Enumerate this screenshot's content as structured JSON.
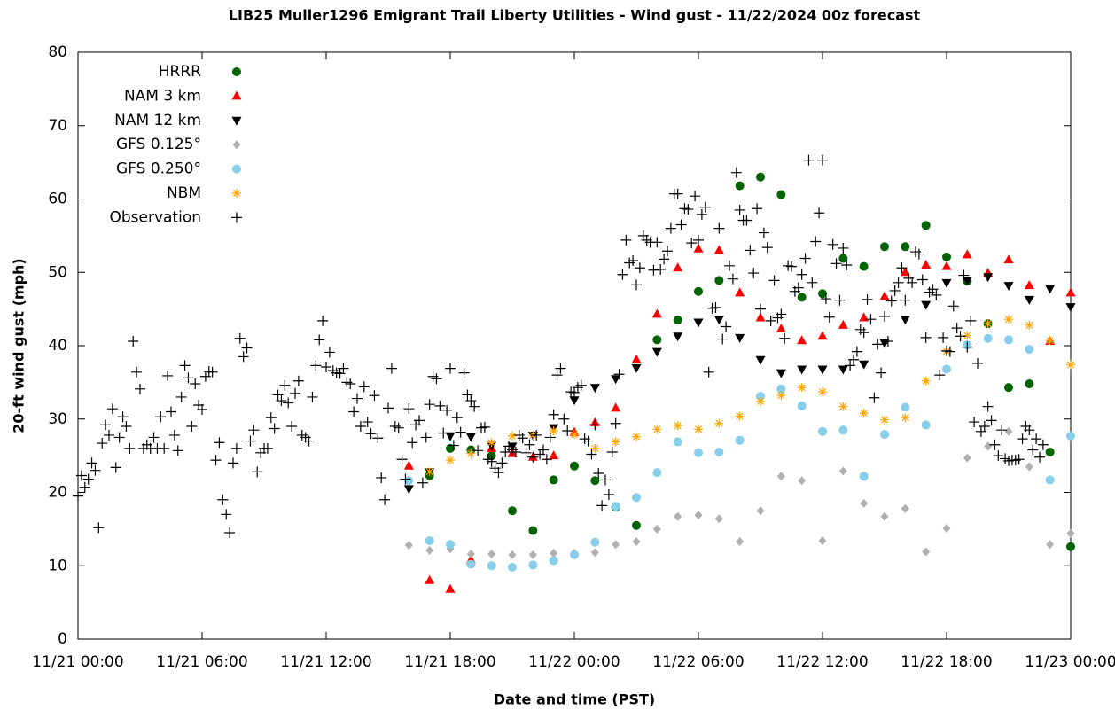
{
  "chart_data": {
    "type": "scatter",
    "title": "LIB25 Muller1296 Emigrant Trail Liberty Utilities - Wind gust - 11/22/2024 00z forecast",
    "x_label": "Date and time (PST)",
    "y_label": "20-ft wind gust (mph)",
    "xlim": [
      0,
      2880
    ],
    "xticks": [
      {
        "value": 0,
        "label": "11/21 00:00"
      },
      {
        "value": 360,
        "label": "11/21 06:00"
      },
      {
        "value": 720,
        "label": "11/21 12:00"
      },
      {
        "value": 1080,
        "label": "11/21 18:00"
      },
      {
        "value": 1440,
        "label": "11/22 00:00"
      },
      {
        "value": 1800,
        "label": "11/22 06:00"
      },
      {
        "value": 2160,
        "label": "11/22 12:00"
      },
      {
        "value": 2520,
        "label": "11/22 18:00"
      },
      {
        "value": 2880,
        "label": "11/23 00:00"
      }
    ],
    "ylim": [
      0,
      80
    ],
    "yticks": [
      0,
      10,
      20,
      30,
      40,
      50,
      60,
      70,
      80
    ],
    "grid": false,
    "legend": "top-left",
    "series": [
      {
        "name": "HRRR",
        "color": "#006400",
        "marker": "circle",
        "x": [
          960,
          1020,
          1080,
          1140,
          1200,
          1260,
          1320,
          1380,
          1440,
          1500,
          1560,
          1620,
          1680,
          1740,
          1800,
          1860,
          1920,
          1980,
          2040,
          2100,
          2160,
          2220,
          2280,
          2340,
          2400,
          2460,
          2520,
          2580,
          2640,
          2700,
          2760,
          2820,
          2880
        ],
        "values": [
          null,
          22.3,
          26.0,
          25.8,
          25.0,
          17.5,
          14.8,
          21.7,
          23.6,
          21.6,
          18.0,
          15.5,
          40.8,
          43.5,
          47.4,
          48.9,
          61.8,
          63.0,
          60.6,
          46.6,
          47.1,
          51.9,
          50.8,
          53.5,
          53.5,
          56.4,
          52.1,
          48.8,
          43.0,
          34.3,
          34.8,
          25.5,
          12.6
        ]
      },
      {
        "name": "NAM 3 km",
        "color": "#ff0000",
        "marker": "triangle-up",
        "x": [
          960,
          1020,
          1080,
          1140,
          1200,
          1260,
          1320,
          1380,
          1440,
          1500,
          1560,
          1620,
          1680,
          1740,
          1800,
          1860,
          1920,
          1980,
          2040,
          2100,
          2160,
          2220,
          2280,
          2340,
          2400,
          2460,
          2520,
          2580,
          2640,
          2700,
          2760,
          2820,
          2880
        ],
        "values": [
          23.6,
          8.0,
          6.8,
          10.8,
          26.0,
          25.3,
          24.8,
          25.0,
          28.2,
          29.5,
          31.5,
          38.1,
          44.3,
          50.6,
          53.2,
          53.0,
          47.2,
          43.8,
          42.3,
          40.7,
          41.3,
          42.8,
          43.8,
          46.7,
          50.0,
          51.0,
          50.8,
          52.4,
          49.9,
          51.7,
          48.2,
          40.6,
          47.2
        ]
      },
      {
        "name": "NAM 12 km",
        "color": "#000000",
        "marker": "triangle-down",
        "x": [
          960,
          1020,
          1080,
          1140,
          1200,
          1260,
          1320,
          1380,
          1440,
          1500,
          1560,
          1620,
          1680,
          1740,
          1800,
          1860,
          1920,
          1980,
          2040,
          2100,
          2160,
          2220,
          2280,
          2340,
          2400,
          2460,
          2520,
          2580,
          2640,
          2700,
          2760,
          2820,
          2880
        ],
        "values": [
          20.5,
          22.8,
          27.7,
          27.6,
          26.4,
          26.3,
          27.8,
          28.8,
          32.6,
          34.3,
          35.5,
          37.0,
          39.2,
          41.3,
          43.2,
          43.6,
          41.1,
          38.1,
          36.3,
          36.8,
          36.8,
          36.8,
          37.5,
          40.4,
          43.6,
          45.6,
          48.6,
          48.9,
          49.4,
          48.2,
          46.3,
          47.8,
          45.3
        ]
      },
      {
        "name": "GFS 0.125°",
        "color": "#b0b0b0",
        "marker": "diamond",
        "x": [
          960,
          1020,
          1080,
          1140,
          1200,
          1260,
          1320,
          1380,
          1440,
          1500,
          1560,
          1620,
          1680,
          1740,
          1800,
          1860,
          1920,
          1980,
          2040,
          2100,
          2160,
          2220,
          2280,
          2340,
          2400,
          2460,
          2520,
          2580,
          2640,
          2700,
          2760,
          2820,
          2880
        ],
        "values": [
          12.8,
          12.1,
          12.3,
          11.6,
          11.6,
          11.5,
          11.5,
          11.7,
          11.7,
          11.8,
          12.9,
          13.3,
          15.0,
          16.7,
          16.9,
          16.4,
          13.3,
          17.5,
          22.2,
          21.6,
          13.4,
          22.9,
          18.5,
          16.7,
          17.8,
          11.9,
          15.1,
          24.7,
          26.3,
          28.3,
          23.5,
          12.9,
          14.4
        ]
      },
      {
        "name": "GFS 0.250°",
        "color": "#87ceeb",
        "marker": "circle",
        "x": [
          960,
          1020,
          1080,
          1140,
          1200,
          1260,
          1320,
          1380,
          1440,
          1500,
          1560,
          1620,
          1680,
          1740,
          1800,
          1860,
          1920,
          1980,
          2040,
          2100,
          2160,
          2220,
          2280,
          2340,
          2400,
          2460,
          2520,
          2580,
          2640,
          2700,
          2760,
          2820,
          2880
        ],
        "values": [
          21.6,
          13.4,
          12.9,
          10.2,
          10.0,
          9.8,
          10.1,
          10.7,
          11.5,
          13.2,
          18.1,
          19.3,
          22.7,
          26.9,
          25.4,
          25.5,
          27.1,
          33.1,
          34.1,
          31.8,
          28.3,
          28.5,
          22.2,
          27.9,
          31.6,
          29.2,
          36.8,
          40.1,
          41.0,
          40.8,
          39.5,
          21.7,
          27.7
        ]
      },
      {
        "name": "NBM",
        "color": "#ffa500",
        "marker": "asterisk",
        "x": [
          960,
          1020,
          1080,
          1140,
          1200,
          1260,
          1320,
          1380,
          1440,
          1500,
          1560,
          1620,
          1680,
          1740,
          1800,
          1860,
          1920,
          1980,
          2040,
          2100,
          2160,
          2220,
          2280,
          2340,
          2400,
          2460,
          2520,
          2580,
          2640,
          2700,
          2760,
          2820,
          2880
        ],
        "values": [
          null,
          22.8,
          24.4,
          25.3,
          26.8,
          27.7,
          27.8,
          28.4,
          27.9,
          26.0,
          26.9,
          27.6,
          28.6,
          29.1,
          28.6,
          29.4,
          30.4,
          32.4,
          33.2,
          34.3,
          33.7,
          31.7,
          30.8,
          29.9,
          30.2,
          35.2,
          39.2,
          41.4,
          43.0,
          43.6,
          42.8,
          40.7,
          37.4
        ]
      },
      {
        "name": "Observation",
        "color": "#000000",
        "marker": "plus",
        "x": [
          0,
          10,
          20,
          30,
          40,
          50,
          60,
          70,
          80,
          90,
          100,
          110,
          120,
          130,
          140,
          150,
          160,
          170,
          180,
          190,
          200,
          210,
          220,
          230,
          240,
          250,
          260,
          270,
          280,
          290,
          300,
          310,
          320,
          330,
          340,
          350,
          360,
          370,
          380,
          390,
          400,
          410,
          420,
          430,
          440,
          450,
          460,
          470,
          480,
          490,
          500,
          510,
          520,
          530,
          540,
          550,
          560,
          570,
          580,
          590,
          600,
          610,
          620,
          630,
          640,
          650,
          660,
          670,
          680,
          690,
          700,
          710,
          720,
          730,
          740,
          750,
          760,
          770,
          780,
          790,
          800,
          810,
          820,
          830,
          840,
          850,
          860,
          870,
          880,
          890,
          900,
          910,
          920,
          930,
          940,
          950,
          960,
          970,
          980,
          990,
          1000,
          1010,
          1020,
          1030,
          1040,
          1050,
          1060,
          1070,
          1080,
          1090,
          1100,
          1110,
          1120,
          1130,
          1140,
          1150,
          1160,
          1170,
          1180,
          1190,
          1200,
          1210,
          1220,
          1230,
          1240,
          1250,
          1260,
          1270,
          1280,
          1290,
          1300,
          1310,
          1320,
          1330,
          1340,
          1350,
          1360,
          1370,
          1380,
          1390,
          1400,
          1410,
          1420,
          1430,
          1440,
          1450,
          1460,
          1470,
          1480,
          1490,
          1500,
          1510,
          1520,
          1530,
          1540,
          1550,
          1560,
          1570,
          1580,
          1590,
          1600,
          1610,
          1620,
          1630,
          1640,
          1650,
          1660,
          1670,
          1680,
          1690,
          1700,
          1710,
          1720,
          1730,
          1740,
          1750,
          1760,
          1770,
          1780,
          1790,
          1800,
          1810,
          1820,
          1830,
          1840,
          1850,
          1860,
          1870,
          1880,
          1890,
          1900,
          1910,
          1920,
          1930,
          1940,
          1950,
          1960,
          1970,
          1980,
          1990,
          2000,
          2010,
          2020,
          2030,
          2040,
          2050,
          2060,
          2070,
          2080,
          2090,
          2100,
          2110,
          2120,
          2130,
          2140,
          2150,
          2160,
          2170,
          2180,
          2190,
          2200,
          2210,
          2220,
          2230,
          2240,
          2250,
          2260,
          2270,
          2280,
          2290,
          2300,
          2310,
          2320,
          2330,
          2340,
          2350,
          2360,
          2370,
          2380,
          2390,
          2400,
          2410,
          2420,
          2430,
          2440,
          2450,
          2460,
          2470,
          2480,
          2490,
          2500,
          2510,
          2520,
          2530,
          2540,
          2550,
          2560,
          2570,
          2580,
          2590,
          2600,
          2610,
          2620,
          2630,
          2640,
          2650,
          2660,
          2670,
          2680,
          2690,
          2700,
          2710,
          2720,
          2730,
          2740,
          2750,
          2760,
          2770,
          2780,
          2790,
          2800
        ],
        "values": [
          19.5,
          22.3,
          20.7,
          21.8,
          24,
          23,
          15.2,
          26.7,
          29.2,
          27.8,
          31.4,
          23.4,
          27.5,
          30.3,
          29,
          26,
          40.6,
          36.4,
          34.1,
          26,
          26.5,
          26,
          27.5,
          26,
          30.3,
          26,
          35.9,
          31,
          27.8,
          25.7,
          33,
          37.3,
          35.6,
          29,
          34.8,
          31.9,
          31.3,
          35.8,
          36.5,
          36.4,
          24.4,
          26.8,
          19,
          17,
          14.5,
          24,
          26,
          41,
          38.5,
          39.7,
          27,
          28.5,
          22.8,
          25.4,
          26,
          26,
          30.2,
          28.7,
          33.3,
          32.5,
          34.6,
          32.2,
          29,
          33.5,
          35.2,
          27.8,
          27.5,
          27,
          33,
          37.3,
          40.8,
          43.4,
          37.1,
          39.1,
          36.6,
          36.3,
          36.2,
          36.9,
          35,
          34.8,
          31,
          32.8,
          29,
          34.4,
          29.6,
          28,
          33.2,
          27.4,
          22,
          19,
          31.5,
          36.9,
          29,
          28.8,
          24.5,
          21.8,
          31.4,
          26.8,
          29.2,
          29.8,
          21.3,
          27.5,
          32,
          35.8,
          35.5,
          31.8,
          28.1,
          31.2,
          36.9,
          26.4,
          30.2,
          28.2,
          36.3,
          33.3,
          32.5,
          31.7,
          25.7,
          28.8,
          28.9,
          24.5,
          24.2,
          23.3,
          22.7,
          24,
          25.5,
          26.3,
          25.8,
          25.5,
          27.8,
          27.4,
          25.4,
          26.5,
          24.8,
          27.8,
          25.2,
          25.8,
          24.5,
          27.5,
          30.6,
          36,
          36.9,
          30,
          28.4,
          33.7,
          33.6,
          34.3,
          34.6,
          27.3,
          27,
          25.2,
          29.2,
          22.6,
          18.2,
          21.7,
          19.7,
          25.5,
          29.4,
          36.1,
          49.7,
          54.4,
          51.3,
          51.6,
          48.3,
          50.6,
          55,
          54.4,
          54.1,
          50.3,
          54.1,
          50.4,
          51.8,
          52.9,
          56,
          60.7,
          60.7,
          56.5,
          58.7,
          58.6,
          54,
          60.4,
          54.4,
          57.9,
          58.9,
          36.4,
          45.1,
          45.2,
          56,
          40.9,
          42.6,
          50.9,
          49.1,
          63.6,
          58.5,
          57.1,
          57.1,
          53,
          49.9,
          58.7,
          45,
          55.4,
          53.4,
          43.4,
          48.9,
          43.8,
          44.3,
          41,
          50.9,
          50.8,
          47.4,
          47.9,
          49.7,
          51.9,
          65.3,
          48.6,
          54.2,
          58.1,
          65.3,
          46.4,
          43.9,
          53.8,
          51.2,
          46.2,
          53.3,
          51,
          37.3,
          38.1,
          39.2,
          42.2,
          41.8,
          46.3,
          43.6,
          32.9,
          40.2,
          36.3,
          44,
          40.6,
          46.1,
          47.5,
          48.6,
          50.6,
          46.2,
          49.2,
          48.6,
          52.8,
          52.5,
          49,
          41.1,
          47.3,
          47.7,
          46.9,
          36,
          41.1,
          39.3,
          39.2,
          45.4,
          42.4,
          41.3,
          49.6,
          39.8,
          43.4,
          29.6,
          37.6,
          28.3,
          29,
          31.7,
          29.8,
          26.5,
          25,
          28.5,
          24.6,
          24.3,
          24.4,
          24.4,
          24.5,
          27.3,
          29,
          28.5,
          25.8,
          27.3,
          24.8,
          26.5
        ]
      }
    ]
  }
}
